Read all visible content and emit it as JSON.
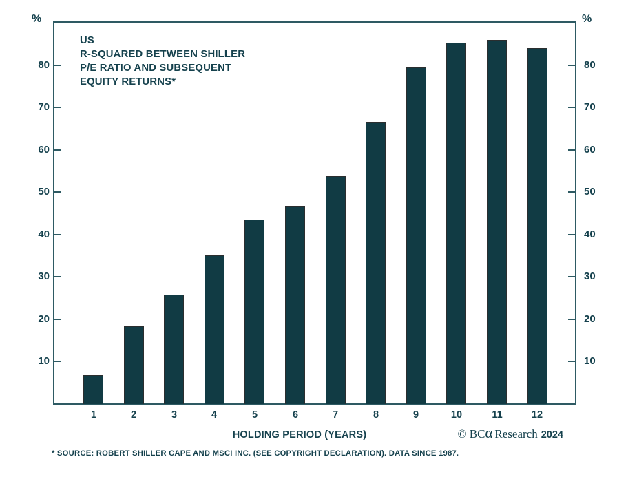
{
  "chart": {
    "title_lines": [
      "US",
      "R-SQUARED BETWEEN SHILLER",
      "P/E RATIO AND SUBSEQUENT",
      "EQUITY RETURNS*"
    ],
    "y_unit_left": "%",
    "y_unit_right": "%",
    "x_axis_title": "HOLDING PERIOD (YEARS)",
    "copyright": {
      "part1": "© BC",
      "alpha": "α",
      "part2": "Research",
      "year": "2024"
    },
    "footnote": "* SOURCE: ROBERT SHILLER CAPE AND MSCI INC. (SEE COPYRIGHT DECLARATION). DATA SINCE 1987."
  },
  "chart_data": {
    "type": "bar",
    "title": "US R-SQUARED BETWEEN SHILLER P/E RATIO AND SUBSEQUENT EQUITY RETURNS*",
    "xlabel": "HOLDING PERIOD (YEARS)",
    "ylabel": "%",
    "categories": [
      1,
      2,
      3,
      4,
      5,
      6,
      7,
      8,
      9,
      10,
      11,
      12
    ],
    "values": [
      6.8,
      18.3,
      25.8,
      35.1,
      43.5,
      46.6,
      53.7,
      66.4,
      79.5,
      85.3,
      86.0,
      84.0
    ],
    "yticks": [
      10,
      20,
      30,
      40,
      50,
      60,
      70,
      80
    ],
    "ylim": [
      0,
      90.5
    ],
    "grid": false,
    "legend": false,
    "colors": {
      "bar_fill": "#113b44",
      "bar_border": "#2b2e2f",
      "axis": "#2e5a63",
      "text": "#15414d",
      "background": "#ffffff"
    }
  }
}
